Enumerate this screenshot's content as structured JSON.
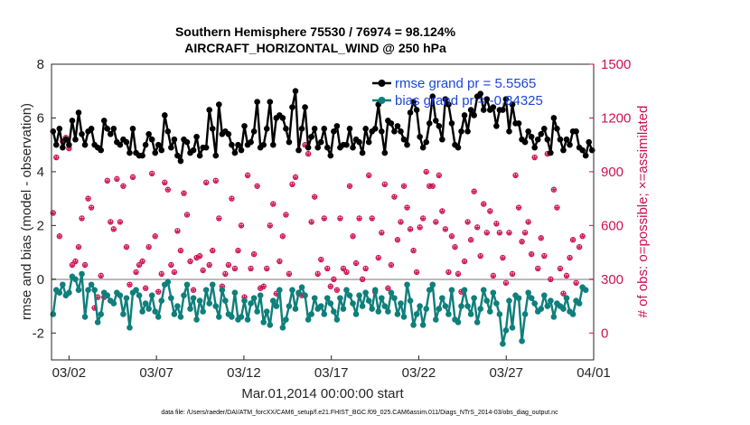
{
  "chart_data": {
    "type": "line",
    "title": "Southern Hemisphere 75530 / 76974 = 98.124%",
    "subtitle": "AIRCRAFT_HORIZONTAL_WIND @ 250 hPa",
    "xlabel": "Mar.01,2014 00:00:00 start",
    "ylabel": "rmse and bias (model - observation)",
    "y2label": "# of obs: o=possible; ×=assimilated",
    "footer": "data file: /Users/raeder/DAI/ATM_forcXX/CAM6_setup/f.e21.FHIST_BGC.f09_025.CAM6assim.011/Diags_NTrS_2014-03/obs_diag_output.nc",
    "x_tick_labels": [
      "03/02",
      "03/07",
      "03/12",
      "03/17",
      "03/22",
      "03/27",
      "04/01"
    ],
    "x_tick_days": [
      2,
      7,
      12,
      17,
      22,
      27,
      32
    ],
    "xlim": [
      1.0,
      32.0
    ],
    "ylim": [
      -3,
      8
    ],
    "y_ticks": [
      "-2",
      "0",
      "2",
      "4",
      "6",
      "8"
    ],
    "y2lim": [
      -150,
      1500
    ],
    "y2_ticks": [
      "0",
      "300",
      "600",
      "900",
      "1200",
      "1500"
    ],
    "grid": false,
    "legend_position": "top-right",
    "colors": {
      "rmse": "#000000",
      "bias": "#0f7f7b",
      "obs": "#cc1150",
      "legend_text": "#1a47d9",
      "zero_line": "#bbbbbb"
    },
    "series": [
      {
        "name": "rmse grand pr = 5.5565",
        "axis": "left",
        "values": [
          5.5,
          5.0,
          5.6,
          4.9,
          5.2,
          5.0,
          5.9,
          5.2,
          6.2,
          5.4,
          5.0,
          5.5,
          5.6,
          5.0,
          4.9,
          4.8,
          5.9,
          5.6,
          5.4,
          5.6,
          5.1,
          5.0,
          5.2,
          5.1,
          4.7,
          5.6,
          4.7,
          4.6,
          4.6,
          5.0,
          5.4,
          5.2,
          4.7,
          5.0,
          4.8,
          6.1,
          5.5,
          4.9,
          5.2,
          4.6,
          4.4,
          5.2,
          5.1,
          4.7,
          4.8,
          5.3,
          4.6,
          4.9,
          4.9,
          6.3,
          5.6,
          4.6,
          6.5,
          5.4,
          5.5,
          5.4,
          5.0,
          4.7,
          5.0,
          4.8,
          5.7,
          5.0,
          5.1,
          5.5,
          6.6,
          4.9,
          5.0,
          5.6,
          6.6,
          5.0,
          6.0,
          6.1,
          6.0,
          5.6,
          5.1,
          6.4,
          7.0,
          4.8,
          5.6,
          6.4,
          4.9,
          5.3,
          5.6,
          4.9,
          5.1,
          5.6,
          4.9,
          4.6,
          5.5,
          5.7,
          4.9,
          5.0,
          5.0,
          5.6,
          4.9,
          5.2,
          5.1,
          4.7,
          5.6,
          5.1,
          5.5,
          5.6,
          6.5,
          5.5,
          4.7,
          5.9,
          5.8,
          5.5,
          5.7,
          5.5,
          5.2,
          5.0,
          6.2,
          6.6,
          6.3,
          5.3,
          4.9,
          5.1,
          5.8,
          6.8,
          5.9,
          5.7,
          5.2,
          6.7,
          6.5,
          5.8,
          5.0,
          4.9,
          5.5,
          6.1,
          5.5,
          6.3,
          6.1,
          6.8,
          6.9,
          6.3,
          6.7,
          6.3,
          6.4,
          5.7,
          6.3,
          6.3,
          6.7,
          5.5,
          6.5,
          5.8,
          5.8,
          5.2,
          5.1,
          5.5,
          5.3,
          4.9,
          5.2,
          5.4,
          5.6,
          5.2,
          4.7,
          6.0,
          5.6,
          5.2,
          4.8,
          5.2,
          5.0,
          5.5,
          5.5,
          4.9,
          4.8,
          4.6,
          5.1,
          4.8
        ]
      },
      {
        "name": "bias grand pr = -0.84325",
        "axis": "left",
        "values": [
          -1.3,
          -0.4,
          -0.5,
          -0.2,
          -0.6,
          -0.5,
          0.1,
          0.0,
          -0.4,
          0.2,
          -1.4,
          -0.4,
          -0.2,
          -0.4,
          -1.6,
          -1.3,
          -0.5,
          -0.6,
          -0.8,
          -0.9,
          -0.5,
          -0.6,
          -1.3,
          -0.7,
          -1.8,
          -0.5,
          -0.4,
          -0.6,
          -1.2,
          -0.9,
          -1.1,
          -0.6,
          -1.2,
          -1.4,
          -0.8,
          -0.2,
          -0.1,
          -0.7,
          -1.3,
          -1.0,
          -1.4,
          -0.6,
          -0.2,
          -1.1,
          -0.7,
          -1.5,
          -0.8,
          -1.2,
          -0.4,
          -0.9,
          -0.2,
          -1.0,
          -1.4,
          -0.4,
          -0.8,
          -1.3,
          -1.4,
          -0.5,
          -1.5,
          -1.4,
          -0.8,
          -1.5,
          -0.9,
          -0.7,
          -1.2,
          -0.6,
          -1.6,
          -1.2,
          -1.7,
          -0.8,
          -1.0,
          -0.4,
          -1.8,
          -1.5,
          -1.0,
          -0.4,
          -1.1,
          -0.5,
          -0.3,
          -0.6,
          -1.5,
          -1.3,
          -0.7,
          -1.1,
          -1.0,
          -1.3,
          -0.7,
          -0.9,
          -1.2,
          -1.5,
          -0.7,
          -1.1,
          -0.4,
          -0.6,
          -0.9,
          -1.3,
          -0.6,
          -1.0,
          -0.5,
          -0.8,
          -1.1,
          -0.4,
          -1.2,
          -0.7,
          -1.0,
          -1.2,
          -0.5,
          -0.7,
          -1.3,
          -0.9,
          -1.4,
          -0.2,
          -0.8,
          -1.7,
          -1.3,
          -1.0,
          -1.7,
          -1.1,
          -0.4,
          -0.2,
          -1.5,
          -1.1,
          -0.7,
          -1.0,
          -1.3,
          -0.4,
          -1.5,
          -1.6,
          -1.0,
          -0.4,
          -1.0,
          -1.3,
          -0.7,
          -1.6,
          -1.1,
          -0.4,
          -0.8,
          -1.2,
          -0.5,
          -0.9,
          -1.3,
          -2.4,
          -1.9,
          -0.8,
          -1.8,
          -0.6,
          -0.7,
          -2.3,
          -1.3,
          -0.5,
          -0.7,
          -0.9,
          -1.2,
          -1.1,
          -0.6,
          -1.0,
          -0.8,
          -1.4,
          -0.9,
          -1.0,
          -1.1,
          -0.7,
          -1.2,
          -1.3,
          -0.8,
          -0.9,
          -0.3,
          -0.4
        ]
      },
      {
        "name": "# of obs possible",
        "axis": "right",
        "marker": "o",
        "values": [
          670,
          980,
          540,
          1070,
          1090,
          1030,
          380,
          400,
          480,
          640,
          380,
          750,
          700,
          140,
          200,
          320,
          200,
          850,
          620,
          580,
          860,
          620,
          820,
          480,
          270,
          870,
          340,
          380,
          400,
          250,
          480,
          890,
          540,
          230,
          330,
          840,
          800,
          380,
          340,
          570,
          460,
          780,
          660,
          400,
          240,
          420,
          430,
          350,
          840,
          380,
          460,
          850,
          640,
          260,
          330,
          380,
          750,
          360,
          460,
          600,
          200,
          880,
          360,
          440,
          820,
          250,
          260,
          360,
          600,
          720,
          220,
          400,
          540,
          660,
          330,
          830,
          870,
          220,
          210,
          1050,
          1000,
          620,
          760,
          330,
          410,
          640,
          360,
          260,
          300,
          240,
          640,
          360,
          340,
          820,
          540,
          390,
          640,
          300,
          360,
          880,
          640,
          230,
          420,
          560,
          830,
          250,
          380,
          760,
          520,
          620,
          820,
          700,
          580,
          460,
          340,
          590,
          640,
          900,
          820,
          820,
          620,
          880,
          680,
          580,
          340,
          540,
          480,
          330,
          230,
          400,
          620,
          520,
          790,
          590,
          430,
          720,
          560,
          680,
          320,
          610,
          560,
          420,
          280,
          560,
          330,
          880,
          700,
          510,
          560,
          620,
          440,
          980,
          360,
          530,
          430,
          1000,
          300,
          800,
          700,
          360,
          220,
          320,
          420,
          520,
          280,
          480,
          540
        ]
      },
      {
        "name": "# of obs assimilated",
        "axis": "right",
        "marker": "*",
        "values": [
          660,
          970,
          530,
          1060,
          1080,
          1020,
          370,
          390,
          470,
          630,
          370,
          740,
          690,
          130,
          190,
          310,
          190,
          840,
          610,
          570,
          850,
          610,
          810,
          470,
          260,
          860,
          330,
          370,
          390,
          240,
          470,
          880,
          530,
          220,
          320,
          830,
          790,
          370,
          330,
          560,
          450,
          770,
          650,
          390,
          230,
          410,
          420,
          340,
          830,
          370,
          450,
          840,
          630,
          250,
          320,
          370,
          740,
          350,
          450,
          590,
          190,
          870,
          350,
          430,
          810,
          240,
          250,
          350,
          590,
          710,
          210,
          390,
          530,
          650,
          320,
          820,
          860,
          210,
          200,
          1040,
          990,
          610,
          750,
          320,
          400,
          630,
          350,
          250,
          290,
          230,
          630,
          350,
          330,
          810,
          530,
          380,
          630,
          290,
          350,
          870,
          630,
          220,
          410,
          550,
          820,
          240,
          370,
          750,
          510,
          610,
          810,
          690,
          570,
          450,
          330,
          580,
          630,
          890,
          810,
          810,
          610,
          870,
          670,
          570,
          330,
          530,
          470,
          320,
          220,
          390,
          610,
          510,
          780,
          580,
          420,
          710,
          550,
          670,
          310,
          600,
          550,
          410,
          270,
          550,
          320,
          870,
          690,
          500,
          550,
          610,
          430,
          970,
          350,
          520,
          420,
          990,
          290,
          790,
          690,
          350,
          210,
          310,
          410,
          510,
          270,
          470,
          530
        ]
      }
    ]
  }
}
